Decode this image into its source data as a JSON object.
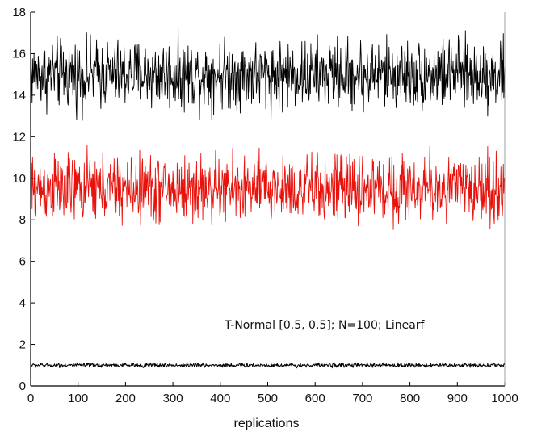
{
  "chart_data": {
    "type": "line",
    "title": "",
    "xlabel": "replications",
    "ylabel": "",
    "xlim": [
      0,
      1000
    ],
    "ylim": [
      0,
      18
    ],
    "xticks": [
      0,
      100,
      200,
      300,
      400,
      500,
      600,
      700,
      800,
      900,
      1000
    ],
    "yticks": [
      0,
      2,
      4,
      6,
      8,
      10,
      12,
      14,
      16,
      18
    ],
    "grid": false,
    "legend": "none",
    "annotation": "T-Normal [0.5, 0.5]; N=100; Linearf",
    "series": [
      {
        "color": "#000000",
        "n_points": 1000,
        "mean": 15.0,
        "min": 12.6,
        "max": 17.5
      },
      {
        "color": "#e8120c",
        "n_points": 1000,
        "mean": 9.5,
        "min": 7.2,
        "max": 12.0
      },
      {
        "color": "#000000",
        "n_points": 1000,
        "mean": 1.0,
        "min": 0.85,
        "max": 1.15
      }
    ]
  }
}
